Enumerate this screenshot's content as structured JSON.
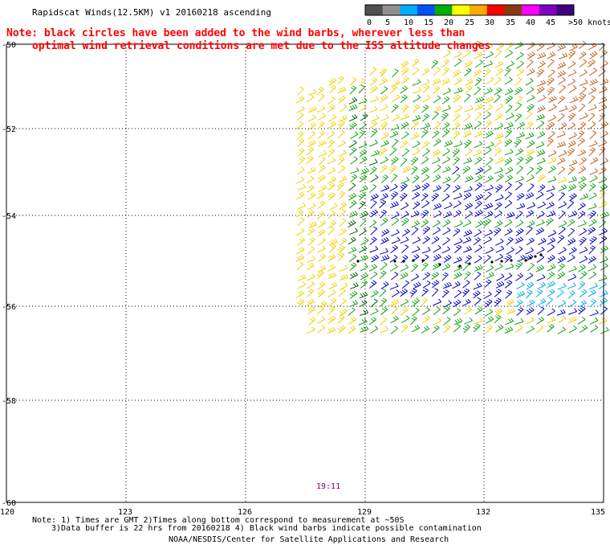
{
  "title": "Rapidscat Winds(12.5KM) v1 20160218 ascending",
  "note_line1": "Note: black circles have been added to the wind barbs, wherever less than",
  "note_line2": "optimal wind retrieval conditions are met due to the ISS altitude changes",
  "colorbar": {
    "labels": [
      "0",
      "5",
      "10",
      "15",
      "20",
      "25",
      "30",
      "35",
      "40",
      "45",
      ">50 knots"
    ],
    "colors": [
      "#505050",
      "#909090",
      "#00aaff",
      "#0050ff",
      "#00b000",
      "#ffff00",
      "#ffaa00",
      "#ff0000",
      "#8b3a10",
      "#ff00ff",
      "#8000c0",
      "#400080"
    ]
  },
  "map": {
    "lon_ticks": [
      "120",
      "123",
      "126",
      "129",
      "132",
      "135"
    ],
    "lat_ticks": [
      "-50",
      "-52",
      "-54",
      "-56",
      "-58",
      "-60"
    ],
    "time_label": "19:11"
  },
  "footer": {
    "line1": "Note: 1) Times are GMT 2)Times along bottom correspond to measurement at ~50S",
    "line2": "3)Data buffer is 22 hrs from 20160218 4) Black wind barbs indicate possible contamination",
    "credit": "NOAA/NESDIS/Center for Satellite Applications and Research"
  },
  "wind_colors": {
    "yellow": "#f0d000",
    "green": "#10a010",
    "darkgreen": "#006000",
    "blue": "#0000c0",
    "cyan": "#00aaee",
    "brown": "#c06020"
  }
}
